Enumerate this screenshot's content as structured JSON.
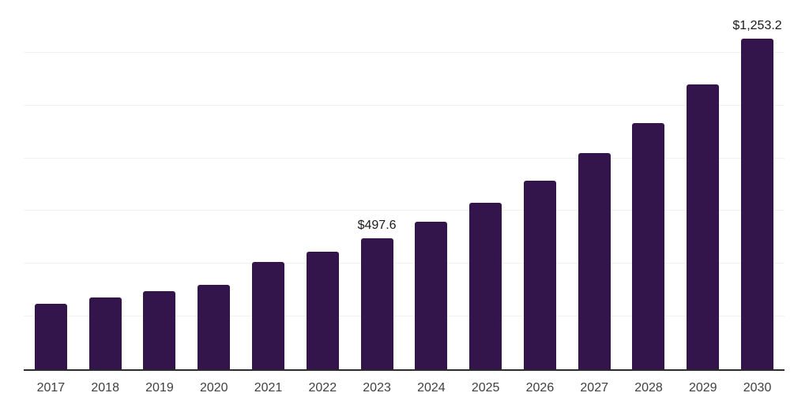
{
  "chart_data": {
    "type": "bar",
    "title": "",
    "xlabel": "",
    "ylabel": "",
    "categories": [
      "2017",
      "2018",
      "2019",
      "2020",
      "2021",
      "2022",
      "2023",
      "2024",
      "2025",
      "2026",
      "2027",
      "2028",
      "2029",
      "2030"
    ],
    "values": [
      248,
      272,
      295,
      319,
      406,
      445,
      497.6,
      558,
      630,
      716,
      820,
      934,
      1080,
      1253.2
    ],
    "value_labels": {
      "2023": "$497.6",
      "2030": "$1,253.2"
    },
    "ylim": [
      0,
      1400
    ],
    "gridline_step": 200,
    "grid": "horizontal",
    "y_tick_labels_shown": false,
    "legend_position": "none",
    "currency_prefix": "$"
  },
  "colors": {
    "background": "#ffffff",
    "bar": "#33144b",
    "axis_line": "#2b2b2b",
    "gridline": "#f2f2f2",
    "tick_label": "#404040",
    "data_label": "#1a1a1a"
  }
}
